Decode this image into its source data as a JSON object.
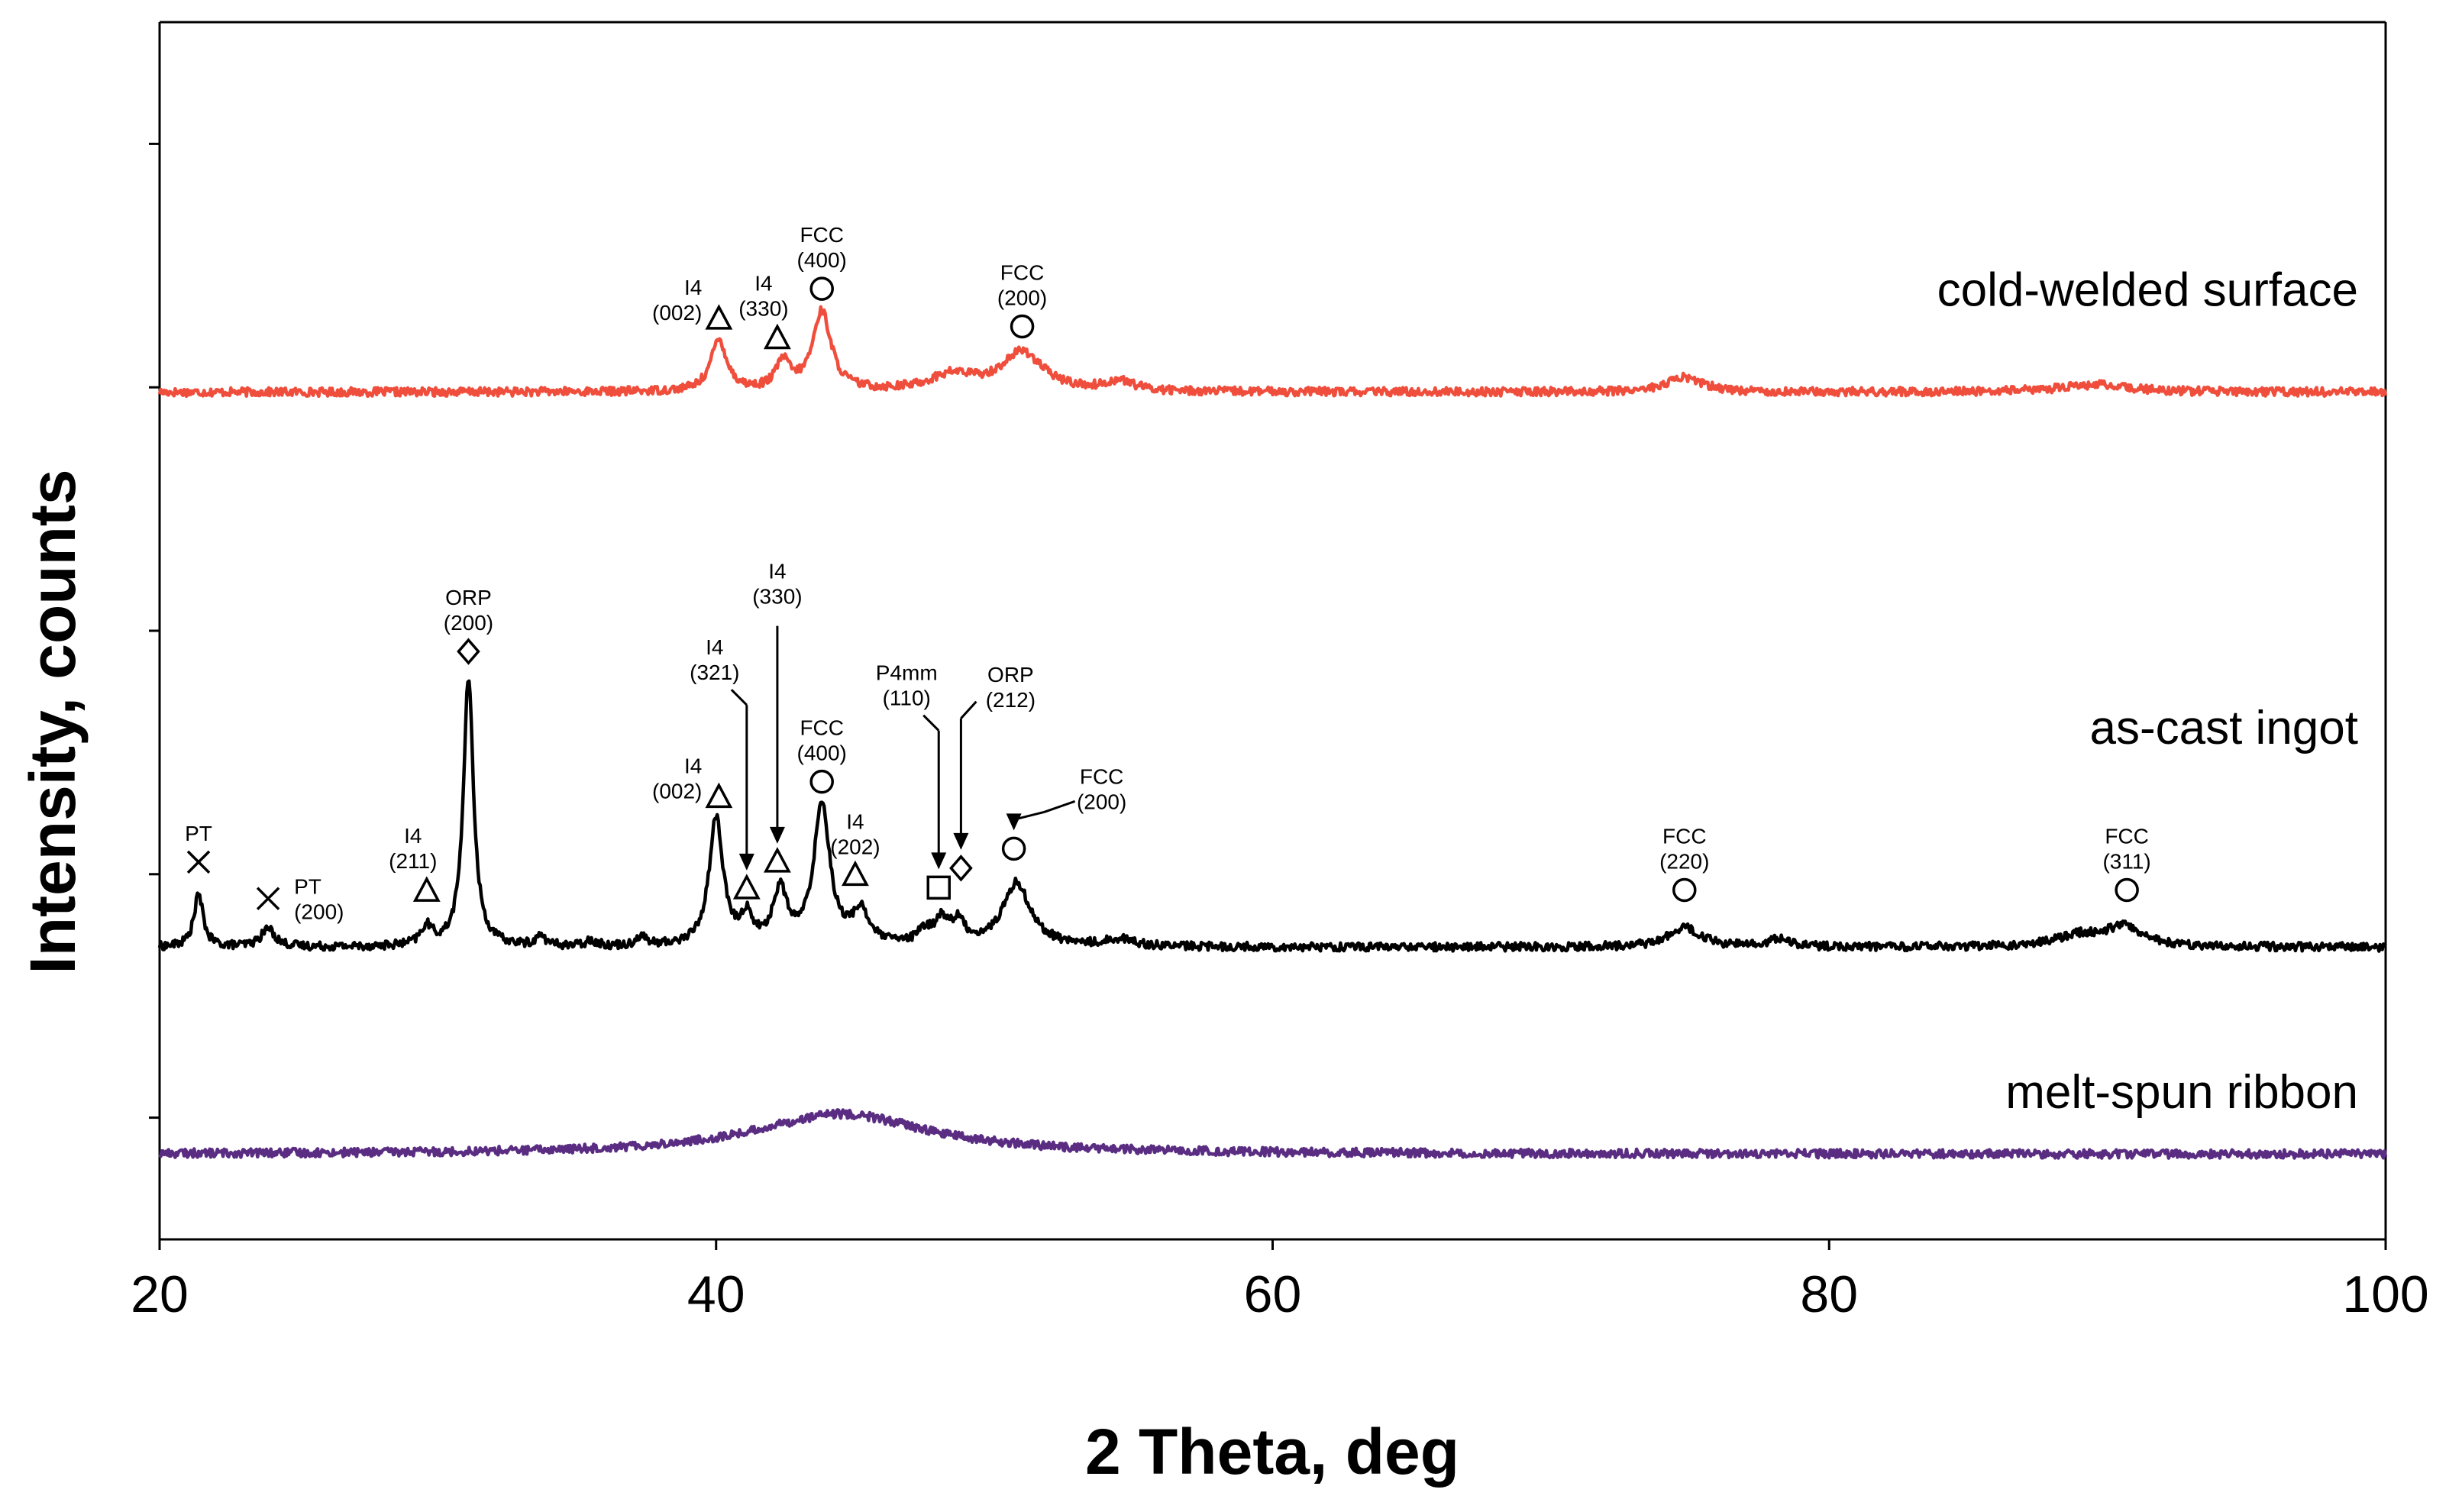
{
  "chart_data": {
    "type": "line",
    "title": "",
    "xlabel": "2 Theta, deg",
    "ylabel": "Intensity, counts",
    "xlim": [
      20,
      100
    ],
    "xticks": [
      20,
      40,
      60,
      80,
      100
    ],
    "ylim": [
      0,
      100
    ],
    "yticks": [
      10,
      30,
      50,
      70,
      90
    ],
    "grid": false,
    "colors": {
      "cold-welded surface": "#f04e3c",
      "as-cast ingot": "#000000",
      "melt-spun ribbon": "#5a2d82"
    },
    "series": [
      {
        "name": "cold-welded surface",
        "baseline": 69.6,
        "noise": 0.35,
        "peaks": [
          {
            "x": 40.1,
            "h": 4.2,
            "w": 0.35
          },
          {
            "x": 42.4,
            "h": 2.3,
            "w": 0.3
          },
          {
            "x": 43.8,
            "h": 6.5,
            "w": 0.4
          },
          {
            "x": 48.5,
            "h": 1.3,
            "w": 1.0
          },
          {
            "x": 51.0,
            "h": 3.2,
            "w": 0.9
          },
          {
            "x": 54.5,
            "h": 0.8,
            "w": 0.6
          },
          {
            "x": 74.8,
            "h": 1.2,
            "w": 0.8
          },
          {
            "x": 89.5,
            "h": 0.6,
            "w": 1.5
          }
        ]
      },
      {
        "name": "as-cast ingot",
        "baseline": 24.0,
        "noise": 0.35,
        "peaks": [
          {
            "x": 21.4,
            "h": 4.3,
            "w": 0.2
          },
          {
            "x": 23.9,
            "h": 1.5,
            "w": 0.3
          },
          {
            "x": 29.6,
            "h": 1.5,
            "w": 0.25
          },
          {
            "x": 31.1,
            "h": 22.0,
            "w": 0.22
          },
          {
            "x": 33.7,
            "h": 0.8,
            "w": 0.2
          },
          {
            "x": 35.5,
            "h": 0.5,
            "w": 0.2
          },
          {
            "x": 37.3,
            "h": 0.8,
            "w": 0.2
          },
          {
            "x": 40.0,
            "h": 10.5,
            "w": 0.3
          },
          {
            "x": 41.1,
            "h": 2.2,
            "w": 0.25
          },
          {
            "x": 42.3,
            "h": 4.4,
            "w": 0.3
          },
          {
            "x": 43.8,
            "h": 11.6,
            "w": 0.35
          },
          {
            "x": 45.2,
            "h": 2.7,
            "w": 0.35
          },
          {
            "x": 47.5,
            "h": 1.0,
            "w": 0.3
          },
          {
            "x": 48.1,
            "h": 1.9,
            "w": 0.3
          },
          {
            "x": 48.7,
            "h": 1.7,
            "w": 0.3
          },
          {
            "x": 50.8,
            "h": 5.2,
            "w": 0.6
          },
          {
            "x": 54.5,
            "h": 0.6,
            "w": 0.6
          },
          {
            "x": 74.8,
            "h": 1.6,
            "w": 0.7
          },
          {
            "x": 78.2,
            "h": 0.7,
            "w": 0.4
          },
          {
            "x": 89.0,
            "h": 0.9,
            "w": 1.0
          },
          {
            "x": 90.6,
            "h": 1.6,
            "w": 0.8
          }
        ]
      },
      {
        "name": "melt-spun ribbon",
        "baseline": 7.0,
        "noise": 0.35,
        "peaks": [
          {
            "x": 44.5,
            "h": 3.3,
            "w": 3.8
          }
        ]
      }
    ],
    "annotations": [
      {
        "series": "cold-welded surface",
        "marker": "triangle",
        "x": 40.1,
        "y": 75.6,
        "lines": [
          "I4",
          "(002)"
        ],
        "label_side": "left"
      },
      {
        "series": "cold-welded surface",
        "marker": "triangle",
        "x": 42.2,
        "y": 74.0,
        "lines": [
          "I4",
          "(330)"
        ],
        "label_side": "above-left"
      },
      {
        "series": "cold-welded surface",
        "marker": "circle",
        "x": 43.8,
        "y": 78.1,
        "lines": [
          "FCC",
          "(400)"
        ],
        "label_side": "above"
      },
      {
        "series": "cold-welded surface",
        "marker": "circle",
        "x": 51.0,
        "y": 75.0,
        "lines": [
          "FCC",
          "(200)"
        ],
        "label_side": "above"
      },
      {
        "series": "as-cast ingot",
        "marker": "cross",
        "x": 21.4,
        "y": 31.0,
        "lines": [
          "PT"
        ],
        "label_side": "above"
      },
      {
        "series": "as-cast ingot",
        "marker": "cross",
        "x": 23.9,
        "y": 28.0,
        "lines": [
          "PT",
          "(200)"
        ],
        "label_side": "right"
      },
      {
        "series": "as-cast ingot",
        "marker": "triangle",
        "x": 29.6,
        "y": 28.6,
        "lines": [
          "I4",
          "(211)"
        ],
        "label_side": "above-left"
      },
      {
        "series": "as-cast ingot",
        "marker": "diamond",
        "x": 31.1,
        "y": 48.3,
        "lines": [
          "ORP",
          "(200)"
        ],
        "label_side": "above"
      },
      {
        "series": "as-cast ingot",
        "marker": "triangle",
        "x": 40.1,
        "y": 36.3,
        "lines": [
          "I4",
          "(002)"
        ],
        "label_side": "left"
      },
      {
        "series": "as-cast ingot",
        "marker": "triangle",
        "x": 41.1,
        "y": 28.8,
        "lines": [
          "I4",
          "(321)"
        ],
        "label_side": "above-left",
        "arrow_from_y": 43.9
      },
      {
        "series": "as-cast ingot",
        "marker": "triangle",
        "x": 42.2,
        "y": 31.0,
        "lines": [
          "I4",
          "(330)"
        ],
        "label_side": "above",
        "arrow_from_y": 50.4
      },
      {
        "series": "as-cast ingot",
        "marker": "circle",
        "x": 43.8,
        "y": 37.6,
        "lines": [
          "FCC",
          "(400)"
        ],
        "label_side": "above"
      },
      {
        "series": "as-cast ingot",
        "marker": "triangle",
        "x": 45.0,
        "y": 29.9,
        "lines": [
          "I4",
          "(202)"
        ],
        "label_side": "above"
      },
      {
        "series": "as-cast ingot",
        "marker": "square",
        "x": 48.0,
        "y": 28.9,
        "lines": [
          "P4mm",
          "(110)"
        ],
        "label_side": "above-left",
        "arrow_from_y": 41.8
      },
      {
        "series": "as-cast ingot",
        "marker": "diamond",
        "x": 48.8,
        "y": 30.5,
        "lines": [
          "ORP",
          "(212)"
        ],
        "label_side": "above-right",
        "arrow_from_y": 42.8
      },
      {
        "series": "as-cast ingot",
        "marker": "circle",
        "x": 50.7,
        "y": 32.1,
        "lines": [
          "FCC",
          "(200)"
        ],
        "label_side": "above-right",
        "arrow_elbow": true
      },
      {
        "series": "as-cast ingot",
        "marker": "circle",
        "x": 74.8,
        "y": 28.7,
        "lines": [
          "FCC",
          "(220)"
        ],
        "label_side": "above"
      },
      {
        "series": "as-cast ingot",
        "marker": "circle",
        "x": 90.7,
        "y": 28.7,
        "lines": [
          "FCC",
          "(311)"
        ],
        "label_side": "above"
      }
    ]
  }
}
